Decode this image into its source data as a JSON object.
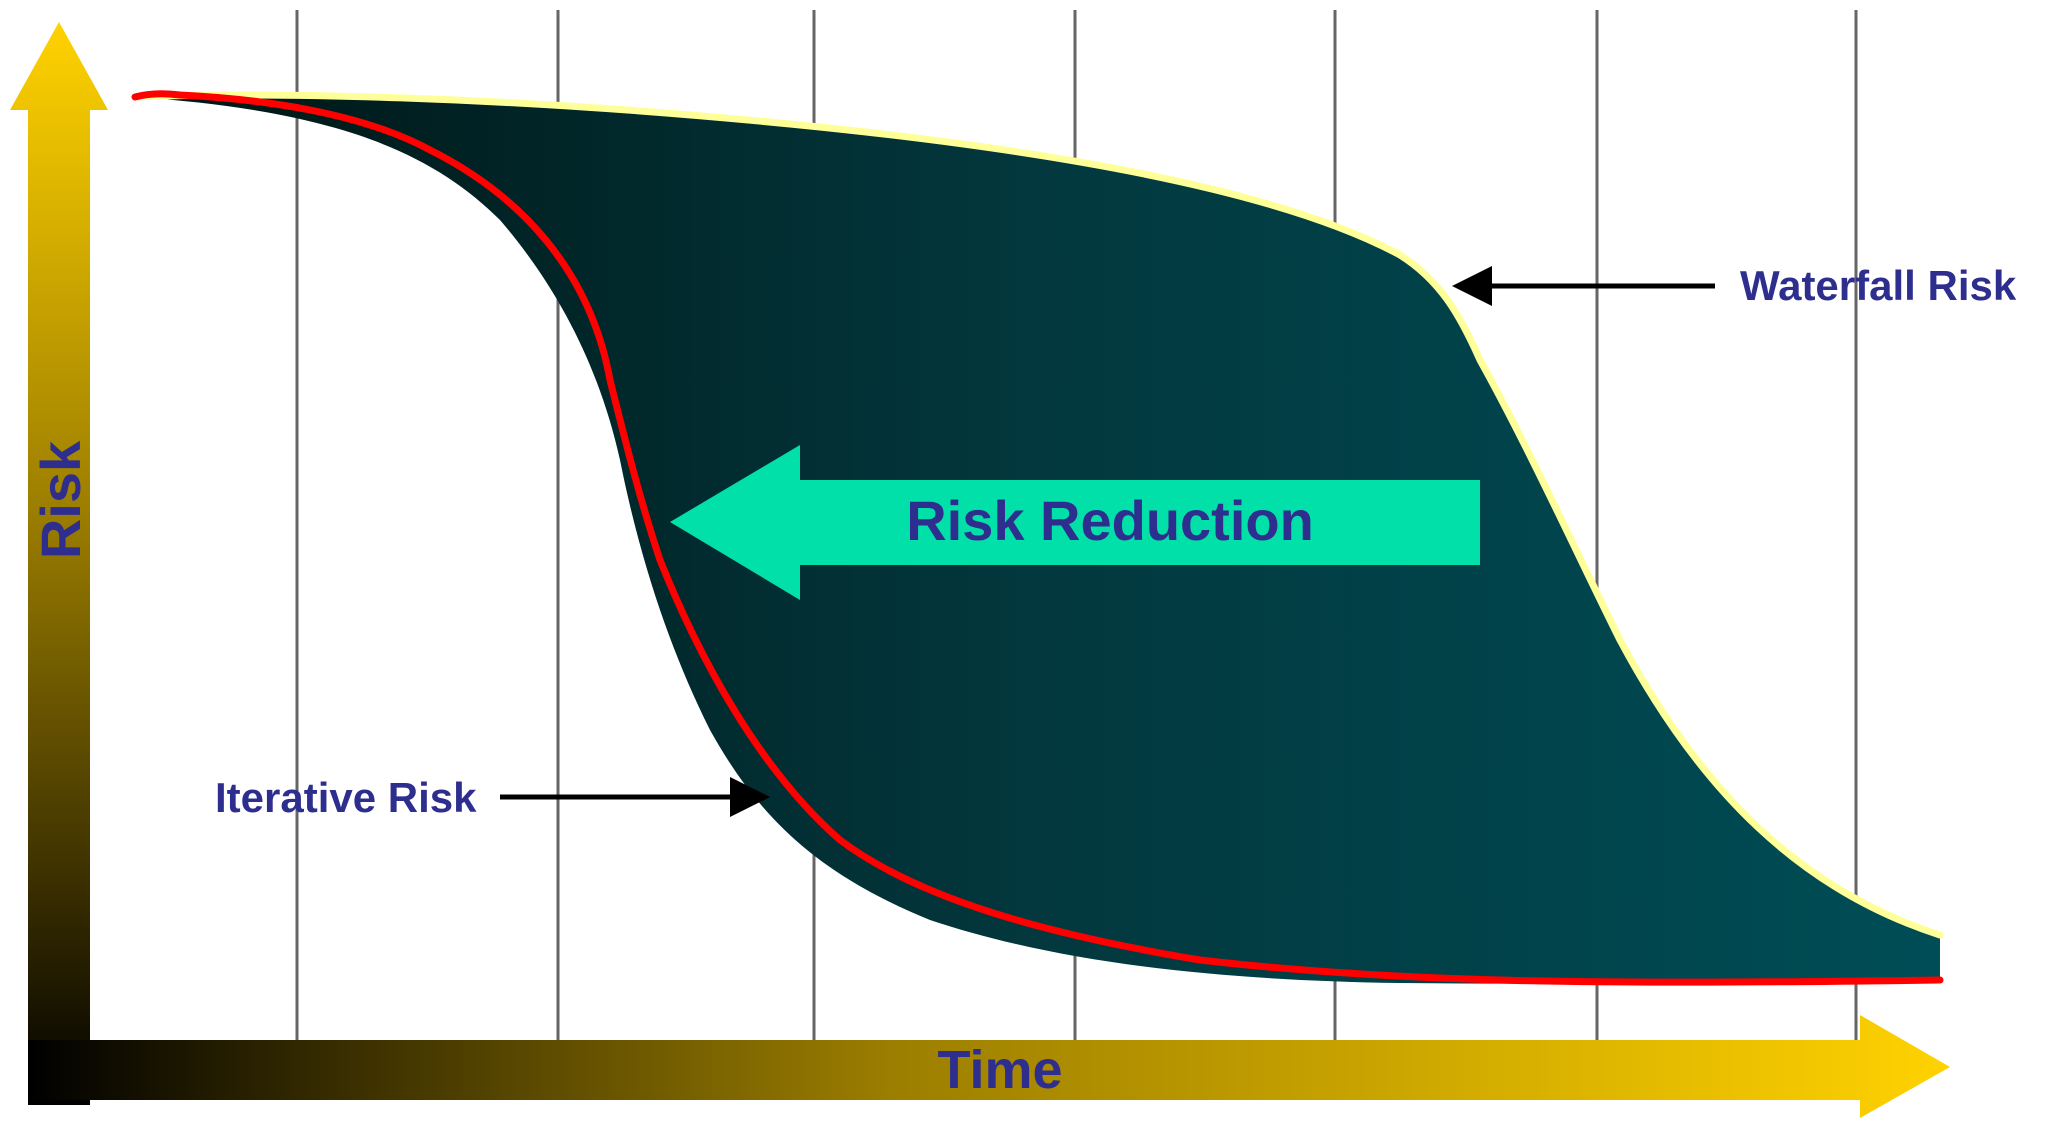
{
  "labels": {
    "y_axis": "Risk",
    "x_axis": "Time",
    "center_arrow": "Risk Reduction",
    "waterfall": "Waterfall Risk",
    "iterative": "Iterative Risk"
  },
  "colors": {
    "axis_gradient_dark": "#000000",
    "axis_gradient_light": "#FFD200",
    "area_fill_left": "#001514",
    "area_fill_right": "#004D56",
    "waterfall_line": "#FFFF99",
    "iterative_line": "#FF0000",
    "arrow_fill": "#00E0A8",
    "text": "#2E2E8F",
    "grid": "#666666"
  },
  "chart_data": {
    "type": "area",
    "title": "",
    "xlabel": "Time",
    "ylabel": "Risk",
    "series": [
      {
        "name": "Waterfall Risk",
        "x": [
          0,
          0.5,
          1,
          1.5,
          2,
          2.5,
          3,
          3.5,
          4,
          4.3,
          4.6,
          5,
          5.3,
          5.6,
          6,
          6.3
        ],
        "values": [
          1.0,
          0.998,
          0.994,
          0.985,
          0.97,
          0.95,
          0.92,
          0.88,
          0.81,
          0.74,
          0.62,
          0.43,
          0.29,
          0.18,
          0.08,
          0.035
        ]
      },
      {
        "name": "Iterative Risk",
        "x": [
          -0.6,
          -0.4,
          0,
          0.4,
          0.8,
          1.0,
          1.2,
          1.4,
          1.6,
          2.0,
          2.4,
          3.0,
          4.0,
          5.0,
          6.0,
          6.3
        ],
        "values": [
          1.0,
          1.0,
          0.98,
          0.92,
          0.8,
          0.67,
          0.48,
          0.32,
          0.2,
          0.12,
          0.08,
          0.05,
          0.02,
          0.01,
          0.01,
          0.015
        ]
      }
    ],
    "grid": true
  }
}
